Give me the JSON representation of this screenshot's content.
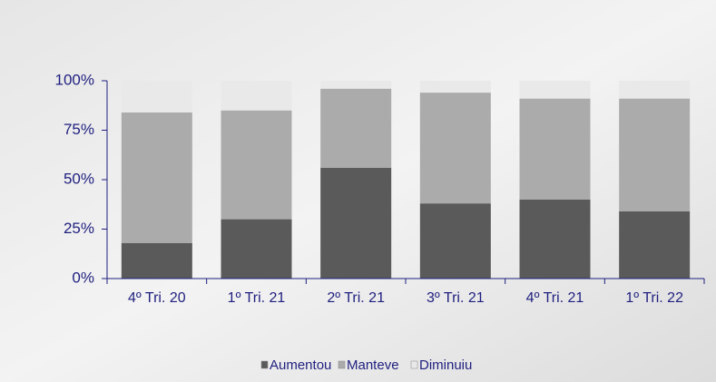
{
  "chart_data": {
    "type": "stacked-bar",
    "categories": [
      "4º Tri. 20",
      "1º Tri. 21",
      "2º Tri. 21",
      "3º Tri. 21",
      "4º Tri. 21",
      "1º Tri. 22"
    ],
    "series": [
      {
        "name": "Aumentou",
        "color": "#5a5a5a",
        "values": [
          18,
          30,
          56,
          38,
          40,
          34
        ]
      },
      {
        "name": "Manteve",
        "color": "#ababab",
        "values": [
          66,
          55,
          40,
          56,
          51,
          57
        ]
      },
      {
        "name": "Diminuiu",
        "color": "#e9e9e9",
        "values": [
          16,
          15,
          4,
          6,
          9,
          9
        ]
      }
    ],
    "ylim": [
      0,
      100
    ],
    "yticks": [
      {
        "value": 0,
        "label": "0%"
      },
      {
        "value": 25,
        "label": "25%"
      },
      {
        "value": 50,
        "label": "50%"
      },
      {
        "value": 75,
        "label": "75%"
      },
      {
        "value": 100,
        "label": "100%"
      }
    ],
    "legend": "bottom"
  }
}
